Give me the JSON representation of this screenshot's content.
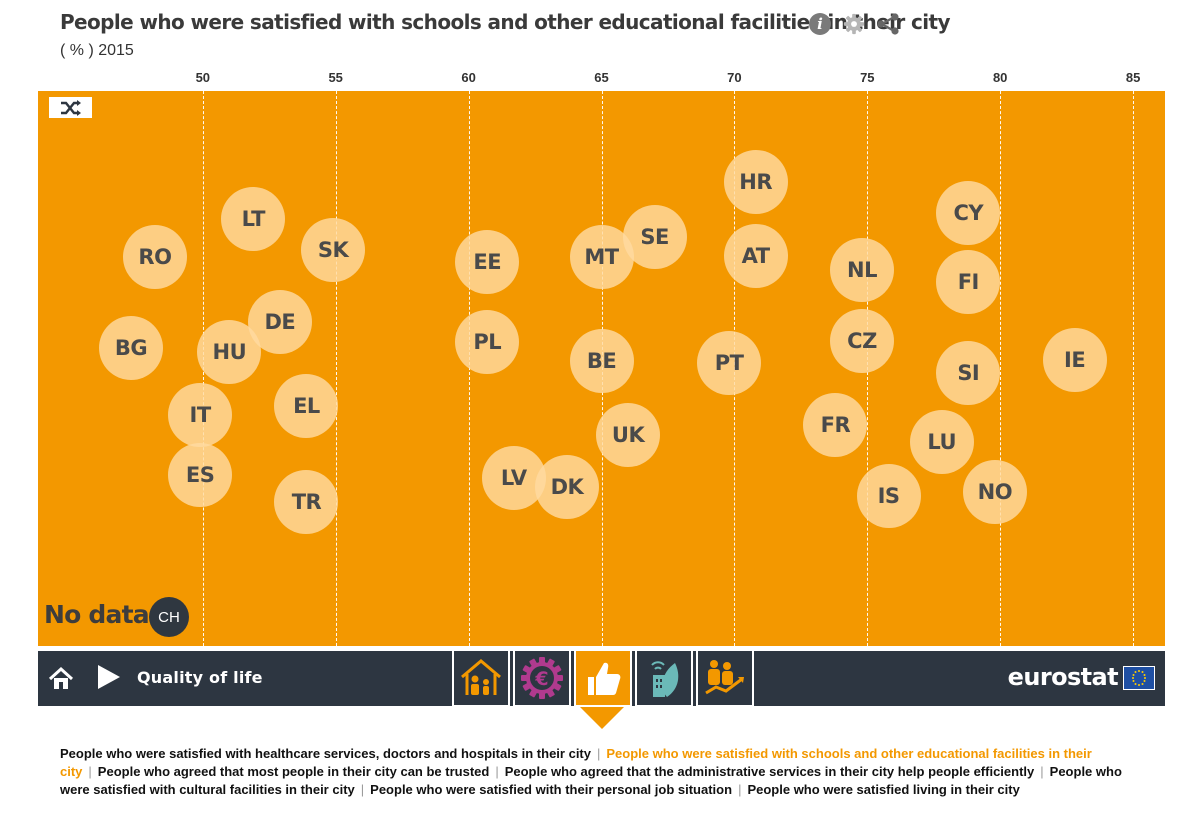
{
  "header": {
    "title": "People who were satisfied with schools and other educational facilities in their city",
    "subtitle": "( % ) 2015",
    "icons": [
      "info-icon",
      "gear-icon",
      "share-icon"
    ]
  },
  "chart_data": {
    "type": "scatter",
    "title": "People who were satisfied with schools and other educational facilities in their city",
    "unit": "( % ) 2015",
    "xlim": [
      43.8,
      86.2
    ],
    "x_ticks": [
      50,
      55,
      60,
      65,
      70,
      75,
      80,
      85
    ],
    "grid": true,
    "points": [
      {
        "label": "RO",
        "x": 48.2
      },
      {
        "label": "BG",
        "x": 47.3
      },
      {
        "label": "LT",
        "x": 51.9
      },
      {
        "label": "SK",
        "x": 54.9
      },
      {
        "label": "DE",
        "x": 52.9
      },
      {
        "label": "HU",
        "x": 51.0
      },
      {
        "label": "IT",
        "x": 49.9
      },
      {
        "label": "ES",
        "x": 49.9
      },
      {
        "label": "EL",
        "x": 53.9
      },
      {
        "label": "TR",
        "x": 53.9
      },
      {
        "label": "EE",
        "x": 60.7
      },
      {
        "label": "PL",
        "x": 60.7
      },
      {
        "label": "MT",
        "x": 65.0
      },
      {
        "label": "SE",
        "x": 67.0
      },
      {
        "label": "BE",
        "x": 65.0
      },
      {
        "label": "UK",
        "x": 66.0
      },
      {
        "label": "LV",
        "x": 61.7
      },
      {
        "label": "DK",
        "x": 63.7
      },
      {
        "label": "HR",
        "x": 70.8
      },
      {
        "label": "AT",
        "x": 70.8
      },
      {
        "label": "PT",
        "x": 69.8
      },
      {
        "label": "NL",
        "x": 74.8
      },
      {
        "label": "CZ",
        "x": 74.8
      },
      {
        "label": "FR",
        "x": 73.8
      },
      {
        "label": "IS",
        "x": 75.8
      },
      {
        "label": "CY",
        "x": 78.8
      },
      {
        "label": "FI",
        "x": 78.8
      },
      {
        "label": "SI",
        "x": 78.8
      },
      {
        "label": "LU",
        "x": 77.8
      },
      {
        "label": "NO",
        "x": 79.8
      },
      {
        "label": "IE",
        "x": 82.8
      }
    ],
    "no_data_label": "No data",
    "no_data": [
      "CH"
    ],
    "point_color": "#ffdaa0",
    "background_color": "#f39800"
  },
  "navbar": {
    "title": "Quality of life",
    "logo": "eurostat",
    "theme_icons": [
      "house-family-icon",
      "euro-gear-icon",
      "thumbs-up-icon",
      "building-leaf-icon",
      "people-growth-icon"
    ],
    "active_index": 2
  },
  "indicators": [
    {
      "label": "People who were satisfied with healthcare services, doctors and hospitals in their city",
      "active": false
    },
    {
      "label": "People who were satisfied with schools and other educational facilities in their city",
      "active": true
    },
    {
      "label": "People who agreed that most people in their city can be trusted",
      "active": false
    },
    {
      "label": "People who agreed that the administrative services in their city help people efficiently",
      "active": false
    },
    {
      "label": "People who were satisfied with cultural facilities in their city",
      "active": false
    },
    {
      "label": "People who were satisfied with their personal job situation",
      "active": false
    },
    {
      "label": "People who were satisfied living in their city",
      "active": false
    }
  ]
}
